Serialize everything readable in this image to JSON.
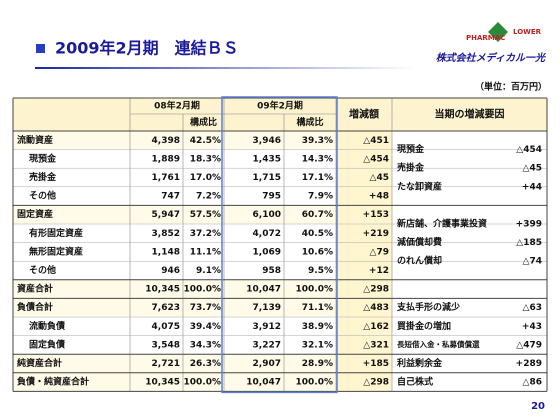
{
  "header": {
    "title": "2009年2月期　連結ＢＳ",
    "logo_top": "PHARMAC",
    "logo_right": "LOWER",
    "company": "株式会社メディカル一光"
  },
  "unit": "（単位：百万円）",
  "table": {
    "columns": [
      "08年2月期",
      "構成比",
      "09年2月期",
      "構成比",
      "増減額",
      "当期の増減要因"
    ],
    "rows": [
      [
        "流動資産",
        "4,398",
        "42.5%",
        "3,946",
        "39.3%",
        "△451"
      ],
      [
        "現預金",
        "1,889",
        "18.3%",
        "1,435",
        "14.3%",
        "△454"
      ],
      [
        "売掛金",
        "1,761",
        "17.0%",
        "1,715",
        "17.1%",
        "△45"
      ],
      [
        "その他",
        "747",
        "7.2%",
        "795",
        "7.9%",
        "+48"
      ],
      [
        "固定資産",
        "5,947",
        "57.5%",
        "6,100",
        "60.7%",
        "+153"
      ],
      [
        "有形固定資産",
        "3,852",
        "37.2%",
        "4,072",
        "40.5%",
        "+219"
      ],
      [
        "無形固定資産",
        "1,148",
        "11.1%",
        "1,069",
        "10.6%",
        "△79"
      ],
      [
        "その他",
        "946",
        "9.1%",
        "958",
        "9.5%",
        "+12"
      ],
      [
        "資産合計",
        "10,345",
        "100.0%",
        "10,047",
        "100.0%",
        "△298"
      ],
      [
        "負債合計",
        "7,623",
        "73.7%",
        "7,139",
        "71.1%",
        "△483"
      ],
      [
        "流動負債",
        "4,075",
        "39.4%",
        "3,912",
        "38.9%",
        "△162"
      ],
      [
        "固定負債",
        "3,548",
        "34.3%",
        "3,227",
        "32.1%",
        "△321"
      ],
      [
        "純資産合計",
        "2,721",
        "26.3%",
        "2,907",
        "28.9%",
        "+185"
      ],
      [
        "負債・純資産合計",
        "10,345",
        "100.0%",
        "10,047",
        "100.0%",
        "△298"
      ]
    ],
    "factors": [
      [
        [
          "現預金",
          "△454"
        ],
        [
          "売掛金",
          "△45"
        ],
        [
          "たな卸資産",
          "+44"
        ]
      ],
      [
        [
          "新店舗、介護事業投資",
          "+399"
        ],
        [
          "減価償却費",
          "△185"
        ],
        [
          "のれん償却",
          "△74"
        ]
      ],
      [
        [
          "支払手形の減少",
          "△63"
        ],
        [
          "買掛金の増加",
          "+43"
        ],
        [
          "長短借入金・私募債償還",
          "△479"
        ]
      ],
      [
        [
          "利益剰余金",
          "+289"
        ],
        [
          "自己株式",
          "△86"
        ]
      ]
    ]
  },
  "page_number": "20"
}
